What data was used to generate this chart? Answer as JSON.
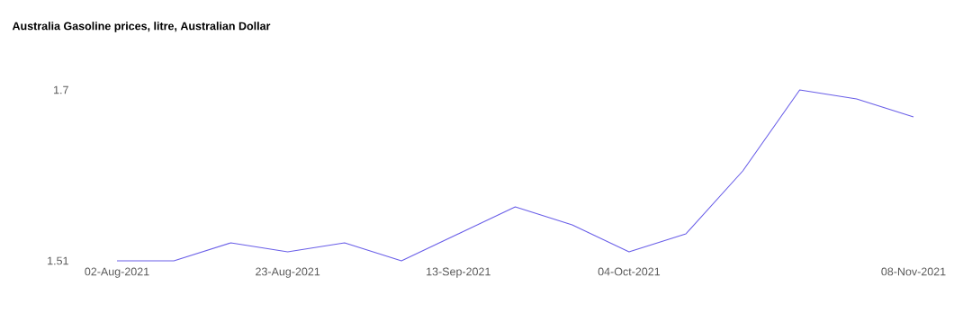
{
  "chart_data": {
    "type": "line",
    "title": "Australia Gasoline prices, litre, Australian Dollar",
    "x": [
      "2021-08-02",
      "2021-08-09",
      "2021-08-16",
      "2021-08-23",
      "2021-08-30",
      "2021-09-06",
      "2021-09-13",
      "2021-09-20",
      "2021-09-27",
      "2021-10-04",
      "2021-10-11",
      "2021-10-18",
      "2021-10-25",
      "2021-11-01",
      "2021-11-08"
    ],
    "values": [
      1.51,
      1.51,
      1.53,
      1.52,
      1.53,
      1.51,
      1.54,
      1.57,
      1.55,
      1.52,
      1.54,
      1.61,
      1.7,
      1.69,
      1.67
    ],
    "color": "#6a5fe8",
    "xlim": [
      "2021-08-02",
      "2021-11-08"
    ],
    "xticks": [
      {
        "value": "2021-08-02",
        "label": "02-Aug-2021"
      },
      {
        "value": "2021-08-23",
        "label": "23-Aug-2021"
      },
      {
        "value": "2021-09-13",
        "label": "13-Sep-2021"
      },
      {
        "value": "2021-10-04",
        "label": "04-Oct-2021"
      },
      {
        "value": "2021-11-08",
        "label": "08-Nov-2021"
      }
    ],
    "ylim": [
      1.51,
      1.7
    ],
    "yticks": [
      1.51,
      1.7
    ]
  }
}
